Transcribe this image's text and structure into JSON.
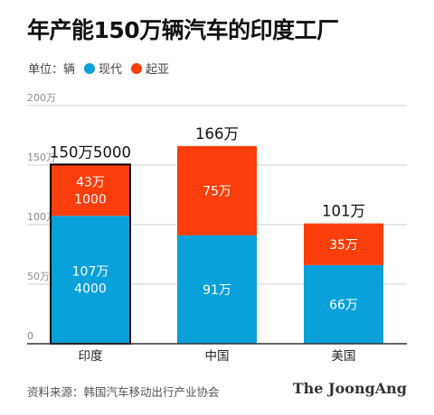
{
  "title": "年产能150万辆汽车的印度工厂",
  "legend": {
    "unit_label": "单位：辆",
    "items": [
      {
        "label": "现代",
        "color": "#0aa0d9"
      },
      {
        "label": "起亚",
        "color": "#fb3e0b"
      }
    ]
  },
  "chart_data": {
    "type": "bar",
    "stacked": true,
    "categories": [
      "印度",
      "中国",
      "美国"
    ],
    "series": [
      {
        "name": "现代",
        "color": "#0aa0d9",
        "values": [
          1074000,
          910000,
          660000
        ],
        "labels": [
          "107万\n4000",
          "91万",
          "66万"
        ]
      },
      {
        "name": "起亚",
        "color": "#fb3e0b",
        "values": [
          431000,
          750000,
          350000
        ],
        "labels": [
          "43万\n1000",
          "75万",
          "35万"
        ]
      }
    ],
    "totals": [
      1505000,
      1660000,
      1010000
    ],
    "total_labels": [
      "150万5000",
      "166万",
      "101万"
    ],
    "highlight_category": "印度",
    "yticks": [
      0,
      500000,
      1000000,
      1500000,
      2000000
    ],
    "ytick_labels": [
      "0",
      "50万",
      "100万",
      "150万",
      "200万"
    ],
    "ylim": [
      0,
      2000000
    ],
    "grid": true,
    "legend_position": "top-left"
  },
  "source": "资料来源：韩国汽车移动出行产业协会",
  "brand": "The JoongAng"
}
